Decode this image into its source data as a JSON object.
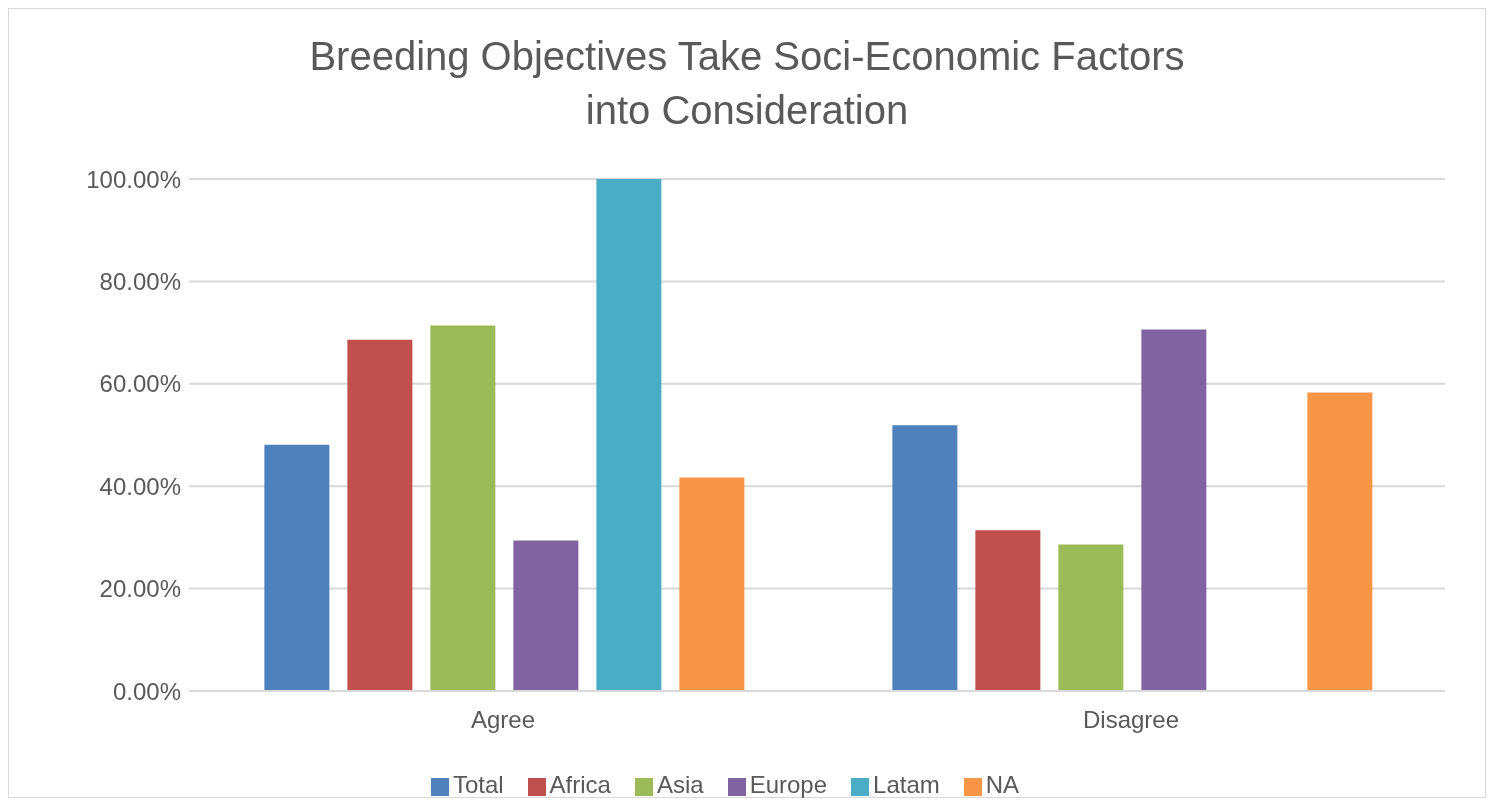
{
  "chart_data": {
    "type": "bar",
    "title": "Breeding Objectives Take Soci-Economic Factors into Consideration",
    "categories": [
      "Agree",
      "Disagree"
    ],
    "series": [
      {
        "name": "Total",
        "color": "#4f81bd",
        "values": [
          48.1,
          51.9
        ]
      },
      {
        "name": "Africa",
        "color": "#c0504d",
        "values": [
          68.6,
          31.4
        ]
      },
      {
        "name": "Asia",
        "color": "#9bbb59",
        "values": [
          71.4,
          28.6
        ]
      },
      {
        "name": "Europe",
        "color": "#8064a2",
        "values": [
          29.4,
          70.6
        ]
      },
      {
        "name": "Latam",
        "color": "#4bacc6",
        "values": [
          100,
          0
        ]
      },
      {
        "name": "NA",
        "color": "#f79646",
        "values": [
          41.7,
          58.3
        ]
      }
    ],
    "ylim": [
      0,
      100
    ],
    "yticks": [
      {
        "value": 0,
        "label": "0.00%"
      },
      {
        "value": 20,
        "label": "20.00%"
      },
      {
        "value": 40,
        "label": "40.00%"
      },
      {
        "value": 60,
        "label": "60.00%"
      },
      {
        "value": 80,
        "label": "80.00%"
      },
      {
        "value": 100,
        "label": "100.00%"
      }
    ],
    "grid": "y",
    "legend": "bottom"
  }
}
